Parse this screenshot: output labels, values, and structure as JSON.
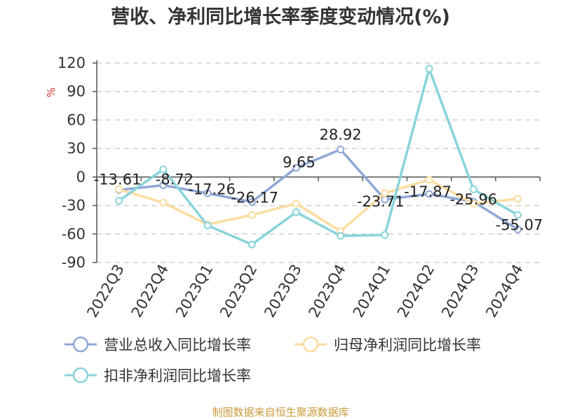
{
  "title": "营收、净利同比增长率季度变动情况(%)",
  "source": "制图数据来自恒生聚源数据库",
  "chart_data": {
    "type": "line",
    "title": "营收、净利同比增长率季度变动情况(%)",
    "ylabel": "%",
    "xlabel": "",
    "categories": [
      "2022Q3",
      "2022Q4",
      "2023Q1",
      "2023Q2",
      "2023Q3",
      "2023Q4",
      "2024Q1",
      "2024Q2",
      "2024Q3",
      "2024Q4"
    ],
    "ylim": [
      -90,
      120
    ],
    "yticks": [
      120,
      90,
      60,
      30,
      0,
      -30,
      -60,
      -90
    ],
    "grid": true,
    "legend_position": "bottom",
    "series": [
      {
        "name": "营业总收入同比增长率",
        "color": "#8fa8d6",
        "values": [
          -13.61,
          -8.72,
          -17.26,
          -26.17,
          9.65,
          28.92,
          -23.71,
          -17.87,
          -25.96,
          -55.07
        ],
        "labels": [
          "-13.61",
          "-8.72",
          "-17.26",
          "-26.17",
          "9.65",
          "28.92",
          "-23.71",
          "-17.87",
          "-25.96",
          "-55.07"
        ]
      },
      {
        "name": "归母净利润同比增长率",
        "color": "#fbdca0",
        "values": [
          -13,
          -27,
          -50,
          -40,
          -28,
          -57,
          -17,
          -3,
          -28,
          -23
        ]
      },
      {
        "name": "扣非净利润同比增长率",
        "color": "#88d4da",
        "values": [
          -25,
          8,
          -51,
          -71,
          -37,
          -62,
          -61,
          114,
          -13,
          -40
        ]
      }
    ]
  }
}
